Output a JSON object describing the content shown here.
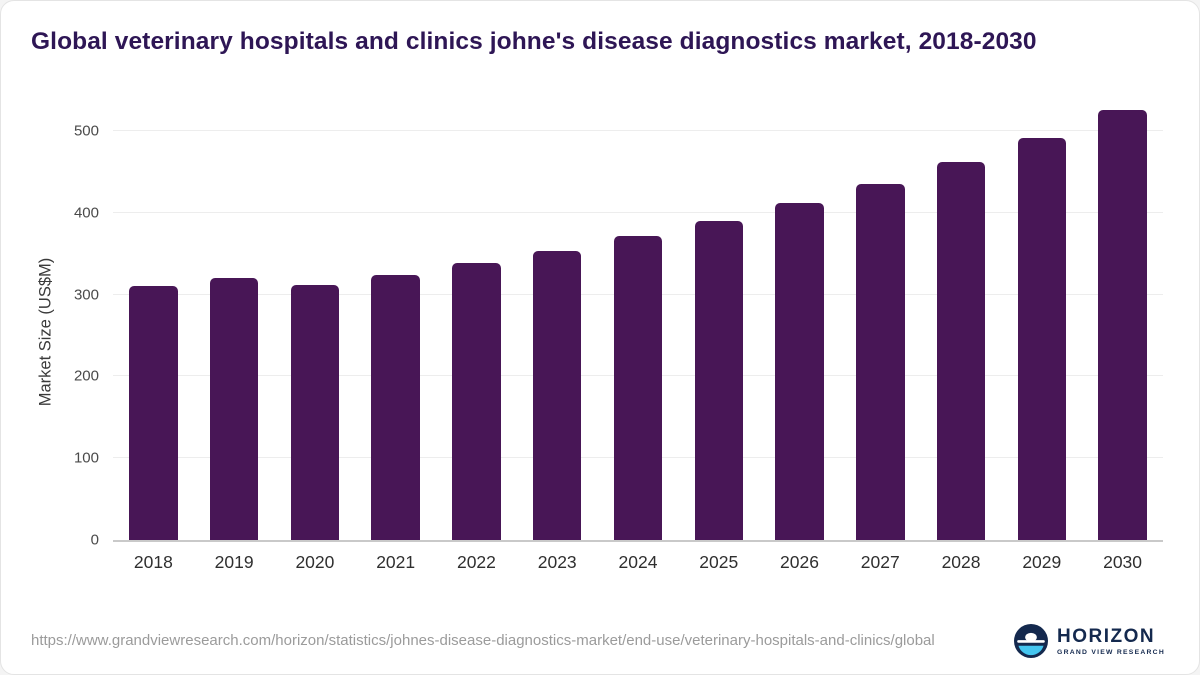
{
  "title": "Global veterinary hospitals and clinics johne's disease diagnostics market, 2018-2030",
  "chart_data": {
    "type": "bar",
    "categories": [
      "2018",
      "2019",
      "2020",
      "2021",
      "2022",
      "2023",
      "2024",
      "2025",
      "2026",
      "2027",
      "2028",
      "2029",
      "2030"
    ],
    "values": [
      310,
      320,
      312,
      324,
      338,
      353,
      371,
      390,
      412,
      435,
      462,
      491,
      526
    ],
    "title": "Global veterinary hospitals and clinics johne's disease diagnostics market, 2018-2030",
    "xlabel": "",
    "ylabel": "Market Size (US$M)",
    "ylim": [
      0,
      550
    ],
    "yticks": [
      0,
      100,
      200,
      300,
      400,
      500
    ],
    "bar_color": "#481656",
    "grid": true,
    "legend": false
  },
  "footer": {
    "source_url": "https://www.grandviewresearch.com/horizon/statistics/johnes-disease-diagnostics-market/end-use/veterinary-hospitals-and-clinics/global",
    "logo": {
      "name": "HORIZON",
      "subtitle": "GRAND VIEW RESEARCH"
    }
  }
}
